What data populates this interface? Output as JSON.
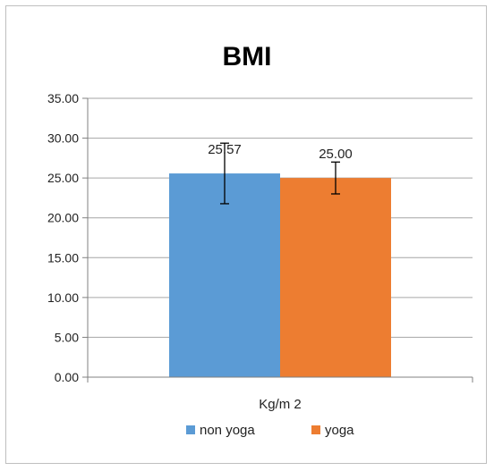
{
  "chart_data": {
    "type": "bar",
    "title": "BMI",
    "categories": [
      "Kg/m2"
    ],
    "category_label_display": "Kg/m 2",
    "ylim": [
      0,
      35
    ],
    "yticks": [
      "0.00",
      "5.00",
      "10.00",
      "15.00",
      "20.00",
      "25.00",
      "30.00",
      "35.00"
    ],
    "ytick_values": [
      0,
      5,
      10,
      15,
      20,
      25,
      30,
      35
    ],
    "grid": true,
    "legend_position": "bottom",
    "series": [
      {
        "name": "non yoga",
        "values": [
          25.57
        ],
        "value_labels": [
          "25.57"
        ],
        "error": [
          3.8
        ],
        "color": "#5b9bd5"
      },
      {
        "name": "yoga",
        "values": [
          25.0
        ],
        "value_labels": [
          "25.00"
        ],
        "error": [
          2.0
        ],
        "color": "#ed7d31"
      }
    ]
  }
}
